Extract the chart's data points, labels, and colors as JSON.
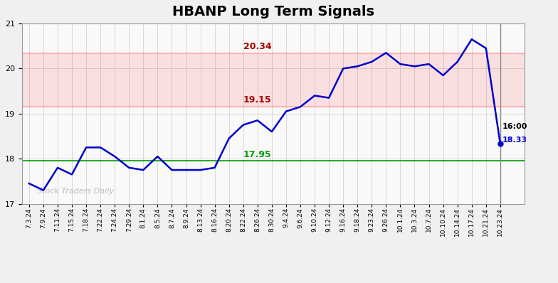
{
  "title": "HBANP Long Term Signals",
  "x_labels": [
    "7.3.24",
    "7.9.24",
    "7.11.24",
    "7.15.24",
    "7.18.24",
    "7.22.24",
    "7.24.24",
    "7.29.24",
    "8.1.24",
    "8.5.24",
    "8.7.24",
    "8.9.24",
    "8.13.24",
    "8.16.24",
    "8.20.24",
    "8.22.24",
    "8.26.24",
    "8.30.24",
    "9.4.24",
    "9.6.24",
    "9.10.24",
    "9.12.24",
    "9.16.24",
    "9.18.24",
    "9.23.24",
    "9.26.24",
    "10.1.24",
    "10.3.24",
    "10.7.24",
    "10.10.24",
    "10.14.24",
    "10.17.24",
    "10.21.24",
    "10.23.24"
  ],
  "y_values": [
    17.45,
    17.3,
    17.8,
    17.65,
    18.25,
    18.25,
    18.05,
    17.8,
    17.75,
    18.05,
    17.75,
    17.75,
    17.75,
    17.8,
    18.45,
    18.75,
    18.85,
    18.6,
    19.05,
    19.15,
    19.4,
    19.35,
    20.0,
    20.05,
    20.15,
    20.35,
    20.1,
    20.05,
    20.1,
    19.85,
    20.15,
    20.65,
    20.45,
    18.33
  ],
  "line_color": "#0000cc",
  "marker_color": "#0000cc",
  "hline_green": 17.95,
  "hline_red1": 19.15,
  "hline_red2": 20.34,
  "green_color": "#009900",
  "red_color": "#aa0000",
  "red_fill_alpha": 0.1,
  "watermark_text": "Stock Traders Daily",
  "watermark_color": "#bbbbbb",
  "annotation_17_95": "17.95",
  "annotation_19_15": "19.15",
  "annotation_20_34": "20.34",
  "last_label_time": "16:00",
  "last_label_value": "18.33",
  "ylim_min": 17.0,
  "ylim_max": 21.0,
  "yticks": [
    17,
    18,
    19,
    20,
    21
  ],
  "bg_color": "#f0f0f0",
  "plot_bg_color": "#f9f9f9",
  "grid_color": "#cccccc",
  "vline_color": "#888888",
  "title_fontsize": 14
}
